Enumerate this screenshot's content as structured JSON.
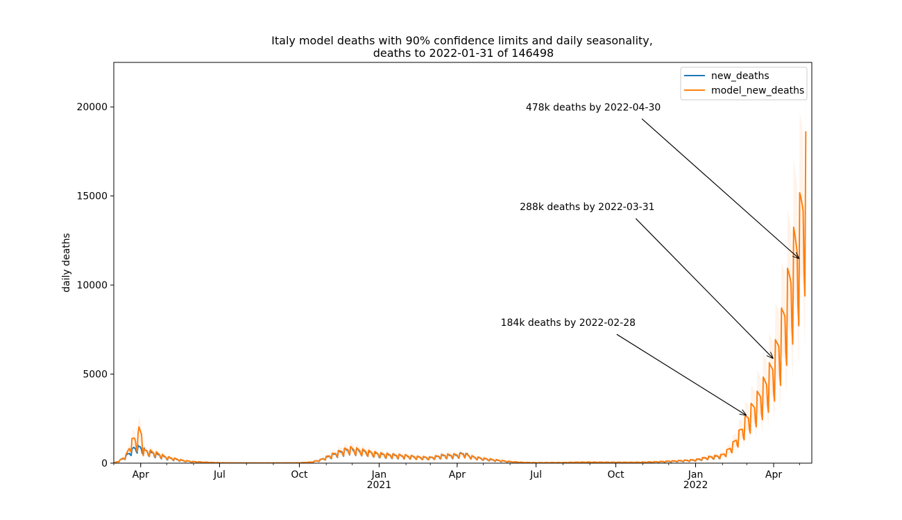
{
  "chart_data": {
    "type": "line",
    "title": "Italy model deaths with 90% confidence limits and daily seasonality,",
    "subtitle": "deaths to 2022-01-31 of 146498",
    "xlabel": "",
    "ylabel": "daily deaths",
    "xlim": [
      "2020-03-01",
      "2022-05-15"
    ],
    "ylim": [
      0,
      22500
    ],
    "y_ticks": [
      0,
      5000,
      10000,
      15000,
      20000
    ],
    "y_tick_labels": [
      "0",
      "5000",
      "10000",
      "15000",
      "20000"
    ],
    "x_ticks": [
      {
        "date": "2020-04-01",
        "label": "Apr",
        "year_label": ""
      },
      {
        "date": "2020-07-01",
        "label": "Jul",
        "year_label": ""
      },
      {
        "date": "2020-10-01",
        "label": "Oct",
        "year_label": ""
      },
      {
        "date": "2021-01-01",
        "label": "Jan",
        "year_label": "2021"
      },
      {
        "date": "2021-04-01",
        "label": "Apr",
        "year_label": ""
      },
      {
        "date": "2021-07-01",
        "label": "Jul",
        "year_label": ""
      },
      {
        "date": "2021-10-01",
        "label": "Oct",
        "year_label": ""
      },
      {
        "date": "2022-01-01",
        "label": "Jan",
        "year_label": "2022"
      },
      {
        "date": "2022-04-01",
        "label": "Apr",
        "year_label": ""
      }
    ],
    "grid": false,
    "legend_position": "top-right",
    "series": [
      {
        "name": "new_deaths",
        "color": "#1f77b4",
        "points": [
          [
            "2020-03-01",
            0
          ],
          [
            "2020-03-08",
            150
          ],
          [
            "2020-03-15",
            380
          ],
          [
            "2020-03-21",
            700
          ],
          [
            "2020-03-27",
            920
          ],
          [
            "2020-04-01",
            850
          ],
          [
            "2020-04-06",
            700
          ],
          [
            "2020-04-12",
            600
          ],
          [
            "2020-04-20",
            500
          ],
          [
            "2020-05-01",
            320
          ],
          [
            "2020-05-10",
            240
          ],
          [
            "2020-05-20",
            140
          ],
          [
            "2020-06-01",
            80
          ],
          [
            "2020-06-15",
            50
          ],
          [
            "2020-07-01",
            20
          ],
          [
            "2020-08-01",
            10
          ],
          [
            "2020-08-15",
            8
          ],
          [
            "2020-09-01",
            10
          ],
          [
            "2020-09-15",
            15
          ],
          [
            "2020-10-01",
            20
          ],
          [
            "2020-10-15",
            60
          ],
          [
            "2020-10-25",
            180
          ],
          [
            "2020-11-05",
            400
          ],
          [
            "2020-11-15",
            600
          ],
          [
            "2020-11-28",
            800
          ],
          [
            "2020-12-05",
            720
          ],
          [
            "2020-12-15",
            650
          ],
          [
            "2021-01-01",
            500
          ],
          [
            "2021-01-15",
            450
          ],
          [
            "2021-02-01",
            400
          ],
          [
            "2021-02-15",
            330
          ],
          [
            "2021-03-01",
            300
          ],
          [
            "2021-03-15",
            420
          ],
          [
            "2021-04-01",
            450
          ],
          [
            "2021-04-08",
            550
          ],
          [
            "2021-04-20",
            330
          ],
          [
            "2021-05-01",
            250
          ],
          [
            "2021-05-15",
            170
          ],
          [
            "2021-06-01",
            80
          ],
          [
            "2021-06-15",
            40
          ],
          [
            "2021-07-01",
            20
          ],
          [
            "2021-08-01",
            30
          ],
          [
            "2021-08-20",
            50
          ],
          [
            "2021-09-01",
            55
          ],
          [
            "2021-09-20",
            45
          ],
          [
            "2021-10-01",
            45
          ],
          [
            "2021-10-20",
            40
          ],
          [
            "2021-11-01",
            50
          ],
          [
            "2021-11-15",
            70
          ],
          [
            "2021-12-01",
            100
          ],
          [
            "2021-12-15",
            130
          ],
          [
            "2022-01-01",
            180
          ],
          [
            "2022-01-15",
            320
          ],
          [
            "2022-01-31",
            420
          ]
        ]
      },
      {
        "name": "model_new_deaths",
        "color": "#ff7f0e",
        "points": [
          [
            "2020-03-01",
            0
          ],
          [
            "2020-03-08",
            150
          ],
          [
            "2020-03-15",
            420
          ],
          [
            "2020-03-22",
            1200
          ],
          [
            "2020-03-25",
            1400
          ],
          [
            "2020-03-28",
            1100
          ],
          [
            "2020-03-30",
            1850
          ],
          [
            "2020-04-02",
            1700
          ],
          [
            "2020-04-04",
            700
          ],
          [
            "2020-04-12",
            650
          ],
          [
            "2020-04-20",
            540
          ],
          [
            "2020-05-01",
            330
          ],
          [
            "2020-05-10",
            250
          ],
          [
            "2020-05-20",
            150
          ],
          [
            "2020-06-01",
            80
          ],
          [
            "2020-06-15",
            50
          ],
          [
            "2020-07-01",
            20
          ],
          [
            "2020-08-01",
            10
          ],
          [
            "2020-09-01",
            10
          ],
          [
            "2020-10-01",
            20
          ],
          [
            "2020-10-15",
            60
          ],
          [
            "2020-10-25",
            180
          ],
          [
            "2020-11-05",
            420
          ],
          [
            "2020-11-15",
            620
          ],
          [
            "2020-11-28",
            820
          ],
          [
            "2020-12-05",
            760
          ],
          [
            "2020-12-15",
            680
          ],
          [
            "2021-01-01",
            520
          ],
          [
            "2021-01-15",
            460
          ],
          [
            "2021-02-01",
            410
          ],
          [
            "2021-02-15",
            340
          ],
          [
            "2021-03-01",
            310
          ],
          [
            "2021-03-15",
            430
          ],
          [
            "2021-04-01",
            470
          ],
          [
            "2021-04-08",
            520
          ],
          [
            "2021-04-20",
            340
          ],
          [
            "2021-05-01",
            260
          ],
          [
            "2021-05-15",
            180
          ],
          [
            "2021-06-01",
            90
          ],
          [
            "2021-06-15",
            45
          ],
          [
            "2021-07-01",
            25
          ],
          [
            "2021-08-01",
            35
          ],
          [
            "2021-08-20",
            55
          ],
          [
            "2021-09-01",
            60
          ],
          [
            "2021-09-20",
            50
          ],
          [
            "2021-10-01",
            45
          ],
          [
            "2021-10-20",
            45
          ],
          [
            "2021-11-01",
            55
          ],
          [
            "2021-11-15",
            75
          ],
          [
            "2021-12-01",
            110
          ],
          [
            "2021-12-15",
            140
          ],
          [
            "2022-01-01",
            190
          ],
          [
            "2022-01-15",
            330
          ],
          [
            "2022-01-31",
            430
          ],
          [
            "2022-02-07",
            700
          ],
          [
            "2022-02-14",
            1100
          ],
          [
            "2022-02-21",
            1700
          ],
          [
            "2022-02-28",
            2400
          ],
          [
            "2022-03-07",
            3000
          ],
          [
            "2022-03-14",
            3600
          ],
          [
            "2022-03-21",
            4300
          ],
          [
            "2022-03-28",
            5000
          ],
          [
            "2022-04-04",
            6200
          ],
          [
            "2022-04-11",
            7800
          ],
          [
            "2022-04-18",
            9800
          ],
          [
            "2022-04-25",
            11800
          ],
          [
            "2022-05-01",
            13200
          ],
          [
            "2022-05-08",
            16200
          ]
        ]
      }
    ],
    "seasonality": {
      "start": "2020-03-01",
      "end": "2022-05-08",
      "trough_fraction": 0.55,
      "confidence_upper_fraction": 1.3,
      "confidence_lower_fraction": 0.7
    },
    "annotations": [
      {
        "text": "478k deaths by 2022-04-30",
        "date": "2022-04-30",
        "value": 11500,
        "text_date": "2021-09-05",
        "text_value": 19800
      },
      {
        "text": "288k deaths by 2022-03-31",
        "date": "2022-03-31",
        "value": 5900,
        "text_date": "2021-08-29",
        "text_value": 14200
      },
      {
        "text": "184k deaths by 2022-02-28",
        "date": "2022-02-28",
        "value": 2700,
        "text_date": "2021-08-07",
        "text_value": 7700
      }
    ],
    "colors": {
      "band": "#ffdcc4"
    }
  }
}
